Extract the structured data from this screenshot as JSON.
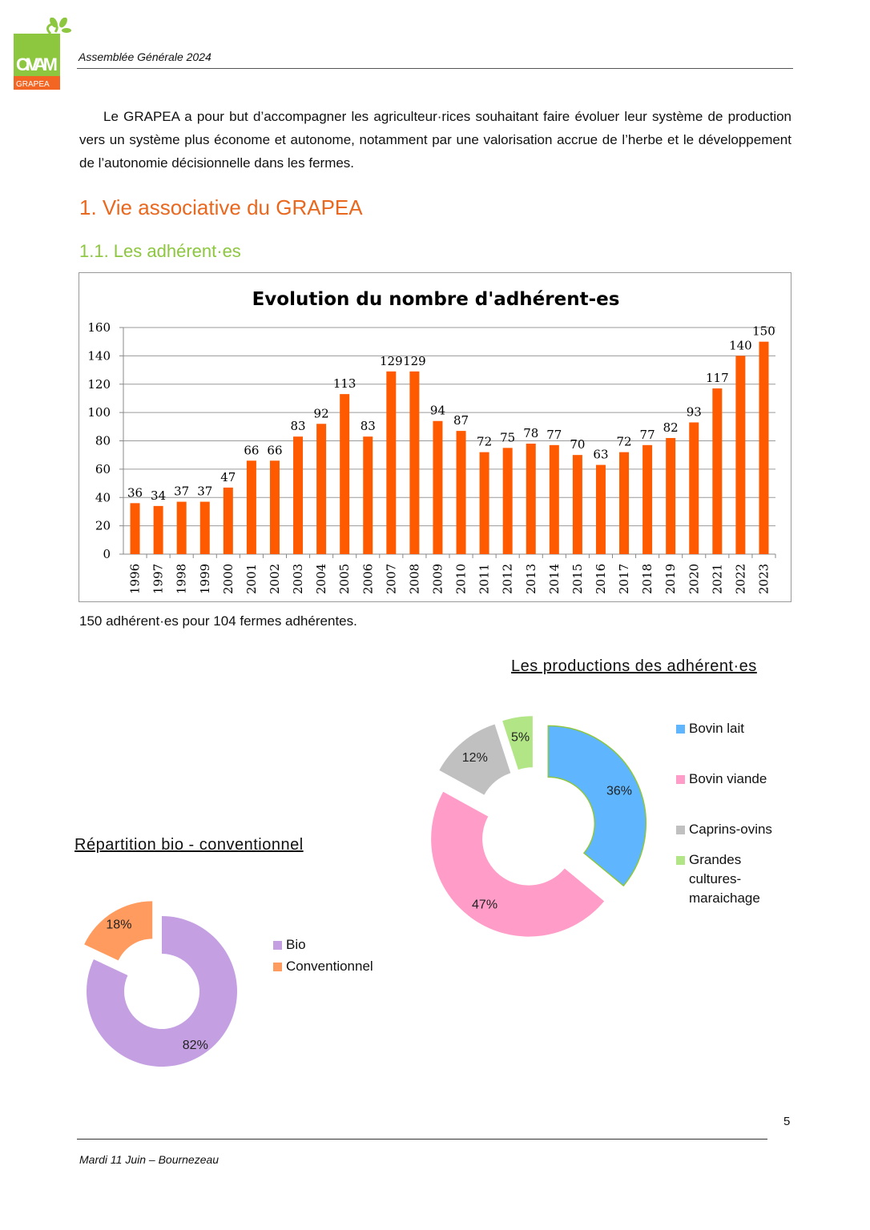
{
  "header": {
    "logo_text": "CIVAM",
    "logo_sub": "GRAPEA",
    "title": "Assemblée Générale 2024"
  },
  "intro": "Le GRAPEA a pour but d’accompagner les agriculteur·rices souhaitant faire évoluer leur système de production vers un système plus économe et autonome, notamment par une valorisation accrue de l’herbe et le développement de l’autonomie décisionnelle dans les fermes.",
  "section_title": "1. Vie associative du GRAPEA",
  "subsection_title": "1.1. Les adhérent·es",
  "caption": "150 adhérent·es pour 104 fermes adhérentes.",
  "chart_data": [
    {
      "type": "bar",
      "title": "Evolution du nombre d'adhérent-es",
      "categories": [
        "1996",
        "1997",
        "1998",
        "1999",
        "2000",
        "2001",
        "2002",
        "2003",
        "2004",
        "2005",
        "2006",
        "2007",
        "2008",
        "2009",
        "2010",
        "2011",
        "2012",
        "2013",
        "2014",
        "2015",
        "2016",
        "2017",
        "2018",
        "2019",
        "2020",
        "2021",
        "2022",
        "2023"
      ],
      "values": [
        36,
        34,
        37,
        37,
        47,
        66,
        66,
        83,
        92,
        113,
        83,
        129,
        129,
        94,
        87,
        72,
        75,
        78,
        77,
        70,
        63,
        72,
        77,
        82,
        93,
        117,
        140,
        150
      ],
      "yticks": [
        "0",
        "20",
        "40",
        "60",
        "80",
        "100",
        "120",
        "140",
        "160"
      ],
      "ylim": [
        0,
        160
      ],
      "grid": true,
      "color": "#ff5a00"
    },
    {
      "type": "pie",
      "title": "Les productions des adhérent·es",
      "labels": [
        "Bovin lait",
        "Bovin viande",
        "Caprins-ovins",
        "Grandes cultures-maraichage"
      ],
      "values": [
        36,
        47,
        12,
        5
      ],
      "data_labels": [
        "36%",
        "47%",
        "12%",
        "5%"
      ],
      "colors": [
        "#5fb6ff",
        "#ff9cc8",
        "#c0c0c0",
        "#b2e585"
      ],
      "legend": "right"
    },
    {
      "type": "pie",
      "title": "Répartition bio - conventionnel",
      "labels": [
        "Bio",
        "Conventionnel"
      ],
      "values": [
        82,
        18
      ],
      "data_labels": [
        "82%",
        "18%"
      ],
      "colors": [
        "#c4a0e2",
        "#ff9b5e"
      ],
      "legend": "right"
    }
  ],
  "page_number": "5",
  "footer": "Mardi 11 Juin – Bournezeau"
}
